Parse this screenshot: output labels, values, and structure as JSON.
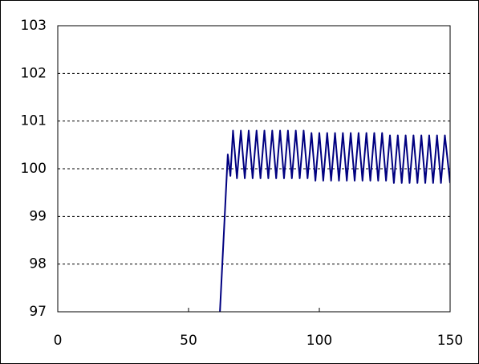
{
  "chart_data": {
    "type": "line",
    "x": [
      62,
      65,
      66,
      67,
      68.5,
      70,
      71.5,
      73,
      74.5,
      76,
      77.5,
      79,
      80.5,
      82,
      83.5,
      85,
      86.5,
      88,
      89.5,
      91,
      92.5,
      94,
      95.5,
      97,
      98.5,
      100,
      101.5,
      103,
      104.5,
      106,
      107.5,
      109,
      110.5,
      112,
      113.5,
      115,
      116.5,
      118,
      119.5,
      121,
      122.5,
      124,
      125.5,
      127,
      128.5,
      130,
      131.5,
      133,
      134.5,
      136,
      137.5,
      139,
      140.5,
      142,
      143.5,
      145,
      146.5,
      148,
      150
    ],
    "series": [
      {
        "color": "#000080",
        "values": [
          97,
          100.3,
          99.85,
          100.8,
          99.8,
          100.8,
          99.8,
          100.8,
          99.8,
          100.8,
          99.8,
          100.8,
          99.8,
          100.8,
          99.8,
          100.8,
          99.8,
          100.8,
          99.8,
          100.8,
          99.8,
          100.8,
          99.8,
          100.75,
          99.75,
          100.75,
          99.75,
          100.75,
          99.75,
          100.75,
          99.75,
          100.75,
          99.75,
          100.75,
          99.75,
          100.75,
          99.75,
          100.75,
          99.75,
          100.75,
          99.75,
          100.75,
          99.75,
          100.7,
          99.7,
          100.7,
          99.7,
          100.7,
          99.7,
          100.7,
          99.7,
          100.7,
          99.7,
          100.7,
          99.7,
          100.7,
          99.7,
          100.7,
          99.7
        ]
      }
    ],
    "xlim": [
      0,
      150
    ],
    "xticks": [
      0,
      50,
      100,
      150
    ],
    "ylim": [
      97,
      103
    ],
    "yticks": [
      97,
      98,
      99,
      100,
      101,
      102,
      103
    ],
    "grid": true
  }
}
